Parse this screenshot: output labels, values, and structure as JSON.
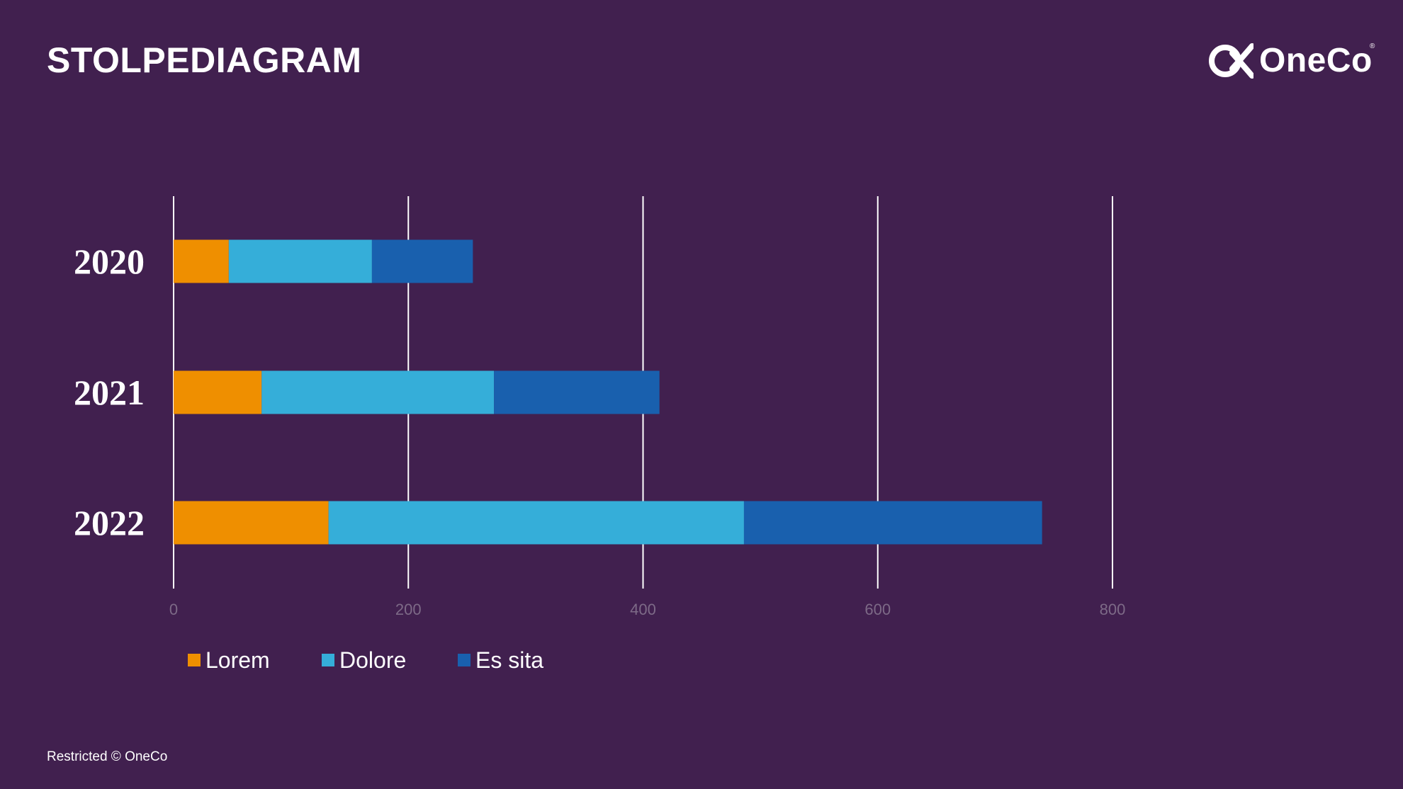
{
  "title": "STOLPEDIAGRAM",
  "logo": {
    "text": "OneCo",
    "mark": "oneco-logo-mark"
  },
  "footer": "Restricted © OneCo",
  "chart_data": {
    "type": "bar",
    "orientation": "horizontal",
    "stacked": true,
    "categories": [
      "2020",
      "2021",
      "2022"
    ],
    "series": [
      {
        "name": "Lorem",
        "values": [
          47,
          75,
          132
        ],
        "color": "#ef8f00"
      },
      {
        "name": "Dolore",
        "values": [
          122,
          198,
          354
        ],
        "color": "#35aed9"
      },
      {
        "name": "Es sita",
        "values": [
          86,
          141,
          254
        ],
        "color": "#1960ae"
      }
    ],
    "xlim": [
      0,
      800
    ],
    "xticks": [
      "0",
      "200",
      "400",
      "600",
      "800"
    ],
    "grid": "vertical",
    "legend": "bottom-left"
  }
}
